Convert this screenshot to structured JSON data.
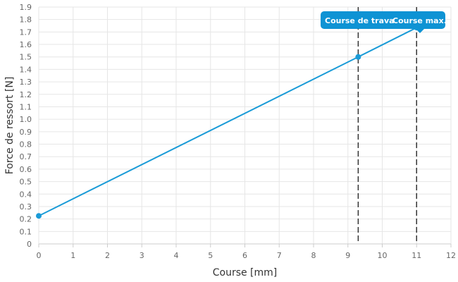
{
  "chart_data": {
    "type": "line",
    "xlabel": "Course [mm]",
    "ylabel": "Force de ressort [N]",
    "xlim": [
      0,
      12
    ],
    "ylim": [
      0,
      1.9
    ],
    "x_ticks": [
      "0",
      "1",
      "2",
      "3",
      "4",
      "5",
      "6",
      "7",
      "8",
      "9",
      "10",
      "11",
      "12"
    ],
    "y_ticks": [
      "0",
      "0.1",
      "0.2",
      "0.3",
      "0.4",
      "0.5",
      "0.6",
      "0.7",
      "0.8",
      "0.9",
      "1.0",
      "1.1",
      "1.2",
      "1.3",
      "1.4",
      "1.5",
      "1.6",
      "1.7",
      "1.8",
      "1.9"
    ],
    "grid": true,
    "series": [
      {
        "color": "#1a9bd7",
        "points": [
          {
            "x": 0,
            "y": 0.225
          },
          {
            "x": 9.3,
            "y": 1.5
          },
          {
            "x": 11,
            "y": 1.735
          }
        ]
      }
    ],
    "markers": [
      {
        "x": 0,
        "y": 0.225
      },
      {
        "x": 9.3,
        "y": 1.5
      },
      {
        "x": 11,
        "y": 1.735
      }
    ],
    "annotations": [
      {
        "label": "Course de trava",
        "x": 9.3
      },
      {
        "label": "Course max.",
        "x": 11
      }
    ],
    "badge_color": "#0e93d4"
  }
}
